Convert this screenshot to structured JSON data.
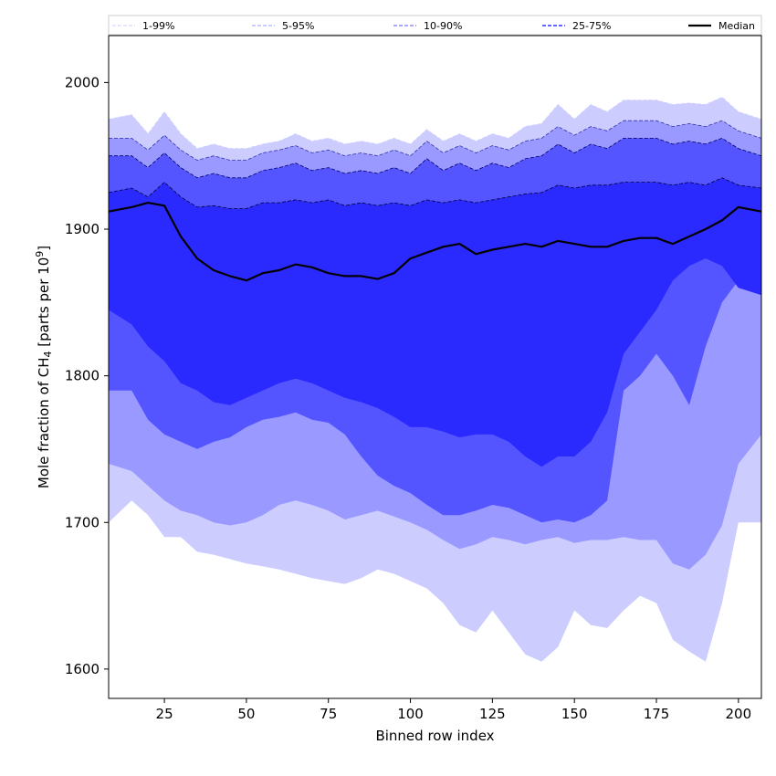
{
  "chart_data": {
    "type": "area",
    "title": "",
    "xlabel": "Binned row index",
    "ylabel_main": "Mole fraction of CH",
    "ylabel_sub": "4",
    "ylabel_rest": " [parts per 10",
    "ylabel_sup": "9",
    "ylabel_end": "]",
    "xlim": [
      8,
      207
    ],
    "ylim": [
      1580,
      2032
    ],
    "xticks": [
      25,
      50,
      75,
      100,
      125,
      150,
      175,
      200
    ],
    "yticks": [
      1600,
      1700,
      1800,
      1900,
      2000
    ],
    "grid": false,
    "legend_position": "top",
    "colors": {
      "band_1_99": "#ccccff",
      "band_5_95": "#9999ff",
      "band_10_90": "#5555ff",
      "band_25_75": "#2a2aff",
      "edge_1_99": "#ccccff",
      "edge_5_95": "#3333aa",
      "edge_10_90": "#000066",
      "edge_25_75": "#000033",
      "median": "#000000"
    },
    "legend": [
      {
        "key": "band_1_99",
        "label": "1-99%"
      },
      {
        "key": "band_5_95",
        "label": "5-95%"
      },
      {
        "key": "band_10_90",
        "label": "10-90%"
      },
      {
        "key": "band_25_75",
        "label": "25-75%"
      },
      {
        "key": "median",
        "label": "Median"
      }
    ],
    "x": [
      8,
      15,
      20,
      25,
      30,
      35,
      40,
      45,
      50,
      55,
      60,
      65,
      70,
      75,
      80,
      85,
      90,
      95,
      100,
      105,
      110,
      115,
      120,
      125,
      130,
      135,
      140,
      145,
      150,
      155,
      160,
      165,
      170,
      175,
      180,
      185,
      190,
      195,
      200,
      207
    ],
    "series": [
      {
        "name": "1-99%",
        "band": "band_1_99",
        "lower": [
          1700,
          1715,
          1705,
          1690,
          1690,
          1680,
          1678,
          1675,
          1672,
          1670,
          1668,
          1665,
          1662,
          1660,
          1658,
          1662,
          1668,
          1665,
          1660,
          1655,
          1645,
          1630,
          1625,
          1640,
          1625,
          1610,
          1605,
          1615,
          1640,
          1630,
          1628,
          1640,
          1650,
          1645,
          1620,
          1612,
          1605,
          1645,
          1700,
          1700
        ],
        "upper": [
          1975,
          1978,
          1965,
          1980,
          1965,
          1955,
          1958,
          1955,
          1955,
          1958,
          1960,
          1965,
          1960,
          1962,
          1958,
          1960,
          1958,
          1962,
          1958,
          1968,
          1960,
          1965,
          1960,
          1965,
          1962,
          1970,
          1972,
          1985,
          1975,
          1985,
          1980,
          1988,
          1988,
          1988,
          1985,
          1986,
          1985,
          1990,
          1980,
          1975
        ]
      },
      {
        "name": "5-95%",
        "band": "band_5_95",
        "lower": [
          1740,
          1735,
          1725,
          1715,
          1708,
          1705,
          1700,
          1698,
          1700,
          1705,
          1712,
          1715,
          1712,
          1708,
          1702,
          1705,
          1708,
          1704,
          1700,
          1695,
          1688,
          1682,
          1685,
          1690,
          1688,
          1685,
          1688,
          1690,
          1686,
          1688,
          1688,
          1690,
          1688,
          1688,
          1672,
          1668,
          1678,
          1698,
          1740,
          1760
        ]
      },
      {
        "name": "10-90%",
        "band": "band_10_90",
        "lower": [
          1790,
          1790,
          1770,
          1760,
          1755,
          1750,
          1755,
          1758,
          1765,
          1770,
          1772,
          1775,
          1770,
          1768,
          1760,
          1745,
          1732,
          1725,
          1720,
          1712,
          1705,
          1705,
          1708,
          1712,
          1710,
          1705,
          1700,
          1702,
          1700,
          1705,
          1715,
          1790,
          1800,
          1815,
          1800,
          1780,
          1820,
          1850,
          1865,
          1870
        ],
        "upper": [
          1950,
          1950,
          1942,
          1952,
          1942,
          1935,
          1938,
          1935,
          1935,
          1940,
          1942,
          1945,
          1940,
          1942,
          1938,
          1940,
          1938,
          1942,
          1938,
          1948,
          1940,
          1945,
          1940,
          1945,
          1942,
          1948,
          1950,
          1958,
          1952,
          1958,
          1955,
          1962,
          1962,
          1962,
          1958,
          1960,
          1958,
          1962,
          1955,
          1950
        ]
      },
      {
        "name": "25-75%",
        "band": "band_25_75",
        "lower": [
          1845,
          1835,
          1820,
          1810,
          1795,
          1790,
          1782,
          1780,
          1785,
          1790,
          1795,
          1798,
          1795,
          1790,
          1785,
          1782,
          1778,
          1772,
          1765,
          1765,
          1762,
          1758,
          1760,
          1760,
          1755,
          1745,
          1738,
          1745,
          1745,
          1755,
          1775,
          1815,
          1830,
          1845,
          1865,
          1875,
          1880,
          1875,
          1860,
          1855
        ],
        "upper": [
          1925,
          1928,
          1922,
          1932,
          1922,
          1915,
          1916,
          1914,
          1914,
          1918,
          1918,
          1920,
          1918,
          1920,
          1916,
          1918,
          1916,
          1918,
          1916,
          1920,
          1918,
          1920,
          1918,
          1920,
          1922,
          1924,
          1925,
          1930,
          1928,
          1930,
          1930,
          1932,
          1932,
          1932,
          1930,
          1932,
          1930,
          1935,
          1930,
          1928
        ]
      },
      {
        "name": "Median",
        "band": "median",
        "values": [
          1912,
          1915,
          1918,
          1916,
          1895,
          1880,
          1872,
          1868,
          1865,
          1870,
          1872,
          1876,
          1874,
          1870,
          1868,
          1868,
          1866,
          1870,
          1880,
          1884,
          1888,
          1890,
          1883,
          1886,
          1888,
          1890,
          1888,
          1892,
          1890,
          1888,
          1888,
          1892,
          1894,
          1894,
          1890,
          1895,
          1900,
          1906,
          1915,
          1912
        ]
      }
    ]
  }
}
